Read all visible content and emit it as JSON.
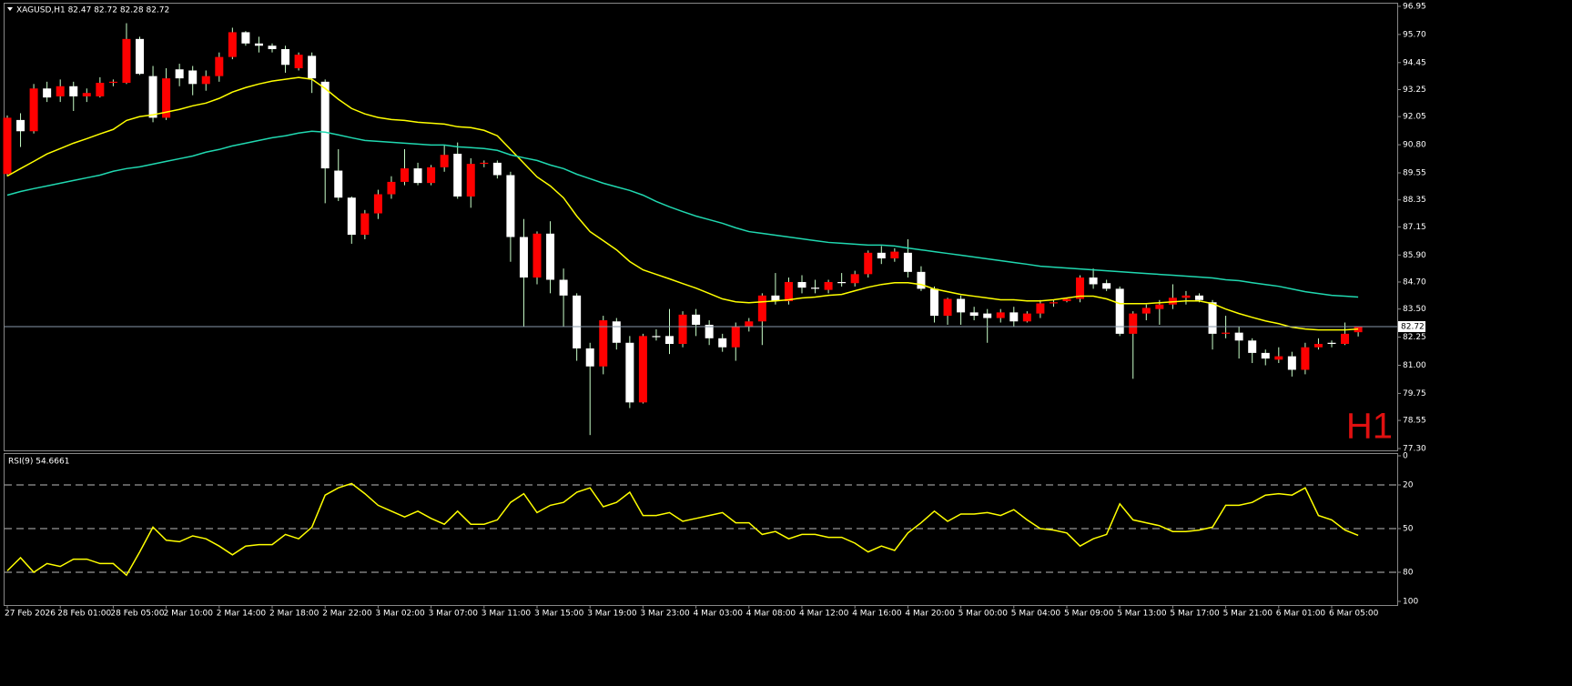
{
  "chart_data": [
    {
      "type": "candlestick",
      "title": "XAGUSD,H1  82.47 82.72 82.28 82.72",
      "annotation": "H1",
      "categories": [
        "27 Feb 2026",
        null,
        null,
        null,
        "28 Feb 01:00",
        null,
        null,
        null,
        "28 Feb 05:00",
        null,
        null,
        null,
        "2 Mar 10:00",
        null,
        null,
        null,
        "2 Mar 14:00",
        null,
        null,
        null,
        "2 Mar 18:00",
        null,
        null,
        null,
        "2 Mar 22:00",
        null,
        null,
        null,
        "3 Mar 02:00",
        null,
        null,
        null,
        "3 Mar 07:00",
        null,
        null,
        null,
        "3 Mar 11:00",
        null,
        null,
        null,
        "3 Mar 15:00",
        null,
        null,
        null,
        "3 Mar 19:00",
        null,
        null,
        null,
        "3 Mar 23:00",
        null,
        null,
        null,
        "4 Mar 03:00",
        null,
        null,
        null,
        "4 Mar 08:00",
        null,
        null,
        null,
        "4 Mar 12:00",
        null,
        null,
        null,
        "4 Mar 16:00",
        null,
        null,
        null,
        "4 Mar 20:00",
        null,
        null,
        null,
        "5 Mar 00:00",
        null,
        null,
        null,
        "5 Mar 04:00",
        null,
        null,
        null,
        "5 Mar 09:00",
        null,
        null,
        null,
        "5 Mar 13:00",
        null,
        null,
        null,
        "5 Mar 17:00",
        null,
        null,
        null,
        "5 Mar 21:00",
        null,
        null,
        null,
        "6 Mar 01:00",
        null,
        null,
        null,
        "6 Mar 05:00",
        null,
        null
      ],
      "open": [
        89.5,
        91.9,
        91.4,
        93.3,
        92.95,
        93.4,
        92.95,
        92.95,
        93.55,
        93.55,
        95.5,
        93.85,
        92.0,
        94.15,
        94.1,
        93.5,
        93.85,
        94.7,
        95.8,
        95.3,
        95.2,
        95.05,
        94.2,
        94.75,
        93.6,
        89.65,
        88.45,
        86.8,
        87.75,
        88.6,
        89.15,
        89.75,
        89.1,
        89.8,
        90.4,
        88.5,
        89.95,
        90.0,
        89.45,
        86.7,
        84.9,
        86.85,
        84.8,
        84.1,
        81.75,
        80.95,
        82.95,
        82.0,
        79.35,
        82.3,
        82.3,
        81.95,
        83.25,
        82.8,
        82.2,
        81.8,
        82.7,
        82.95,
        84.1,
        83.85,
        84.7,
        84.45,
        84.35,
        84.7,
        84.65,
        85.05,
        86.0,
        85.75,
        86.0,
        85.15,
        84.4,
        83.2,
        83.95,
        83.35,
        83.3,
        83.1,
        83.35,
        82.95,
        83.3,
        83.75,
        83.85,
        83.95,
        84.9,
        84.65,
        84.4,
        82.4,
        83.3,
        83.5,
        83.7,
        84.0,
        84.1,
        83.8,
        82.4,
        82.45,
        82.1,
        81.55,
        81.25,
        81.4,
        80.8,
        81.8,
        82.0,
        81.95,
        82.47
      ],
      "high": [
        92.1,
        92.2,
        93.5,
        93.6,
        93.7,
        93.6,
        93.3,
        93.8,
        93.7,
        96.2,
        95.6,
        94.3,
        94.2,
        94.4,
        94.3,
        94.1,
        94.9,
        96.0,
        95.85,
        95.6,
        95.3,
        95.2,
        94.9,
        94.9,
        93.7,
        90.6,
        88.5,
        87.9,
        88.8,
        89.4,
        90.6,
        90.0,
        89.9,
        90.8,
        90.9,
        90.2,
        90.1,
        90.1,
        89.6,
        87.5,
        86.95,
        87.4,
        85.3,
        84.2,
        82.0,
        83.2,
        83.1,
        82.3,
        82.4,
        82.6,
        83.5,
        83.4,
        83.5,
        83.0,
        82.4,
        82.9,
        83.1,
        84.2,
        85.1,
        84.9,
        85.0,
        84.8,
        84.8,
        85.1,
        85.2,
        86.1,
        86.3,
        86.2,
        86.6,
        85.4,
        84.5,
        84.0,
        84.1,
        83.6,
        83.5,
        83.5,
        83.6,
        83.4,
        83.9,
        83.9,
        84.0,
        85.0,
        85.3,
        84.8,
        84.5,
        83.4,
        83.7,
        83.9,
        84.6,
        84.3,
        84.2,
        83.9,
        83.2,
        82.7,
        82.2,
        81.7,
        81.8,
        81.6,
        82.0,
        82.2,
        82.1,
        82.9,
        82.72
      ],
      "low": [
        89.4,
        90.7,
        91.3,
        92.7,
        92.7,
        92.3,
        92.7,
        92.9,
        93.4,
        93.5,
        93.9,
        91.8,
        91.9,
        93.4,
        93.0,
        93.2,
        93.6,
        94.6,
        95.2,
        94.9,
        94.9,
        94.0,
        94.1,
        93.1,
        88.2,
        88.3,
        86.4,
        86.6,
        87.5,
        88.4,
        89.0,
        89.0,
        89.0,
        89.6,
        88.4,
        88.0,
        89.8,
        89.3,
        85.6,
        82.7,
        84.6,
        84.2,
        82.7,
        81.2,
        77.9,
        80.6,
        81.7,
        79.1,
        79.3,
        82.1,
        81.5,
        81.8,
        82.3,
        81.9,
        81.6,
        81.2,
        82.5,
        81.9,
        83.7,
        83.7,
        84.2,
        84.2,
        84.2,
        84.5,
        84.5,
        84.9,
        85.5,
        85.6,
        84.9,
        84.3,
        82.9,
        82.8,
        82.8,
        83.0,
        82.0,
        82.9,
        82.7,
        82.9,
        83.1,
        83.6,
        83.8,
        83.8,
        84.4,
        84.3,
        82.3,
        80.4,
        83.0,
        82.8,
        83.5,
        83.7,
        83.8,
        81.7,
        82.2,
        81.3,
        81.1,
        81.0,
        81.1,
        80.5,
        80.6,
        81.7,
        81.8,
        81.9,
        82.28
      ],
      "close": [
        92.0,
        91.4,
        93.3,
        92.9,
        93.4,
        92.95,
        93.1,
        93.55,
        93.6,
        95.5,
        93.95,
        92.0,
        93.75,
        93.75,
        93.5,
        93.85,
        94.7,
        95.8,
        95.3,
        95.2,
        95.05,
        94.35,
        94.8,
        93.75,
        89.75,
        88.45,
        86.8,
        87.75,
        88.6,
        89.15,
        89.75,
        89.1,
        89.8,
        90.35,
        88.5,
        89.95,
        90.0,
        89.45,
        86.7,
        84.9,
        86.85,
        84.8,
        84.1,
        81.75,
        80.95,
        83.0,
        82.0,
        79.35,
        82.3,
        82.25,
        81.95,
        83.25,
        82.8,
        82.2,
        81.8,
        82.7,
        82.95,
        84.1,
        83.85,
        84.7,
        84.45,
        84.4,
        84.7,
        84.65,
        85.05,
        86.0,
        85.75,
        86.05,
        85.15,
        84.4,
        83.2,
        83.95,
        83.35,
        83.2,
        83.1,
        83.35,
        82.95,
        83.3,
        83.75,
        83.8,
        83.95,
        84.9,
        84.6,
        84.4,
        82.4,
        83.3,
        83.55,
        83.7,
        84.0,
        84.1,
        83.9,
        82.4,
        82.45,
        82.1,
        81.55,
        81.3,
        81.4,
        80.8,
        81.8,
        81.95,
        81.95,
        82.4,
        82.72
      ],
      "up_color": "#ff0000",
      "down_color": "#ffffff",
      "wick_color": "#c8ffc8",
      "indicators": [
        {
          "color": "#ffff00",
          "values": [
            89.41,
            89.74,
            90.06,
            90.39,
            90.63,
            90.87,
            91.07,
            91.28,
            91.48,
            91.88,
            92.05,
            92.13,
            92.25,
            92.37,
            92.53,
            92.65,
            92.86,
            93.14,
            93.34,
            93.5,
            93.63,
            93.71,
            93.79,
            93.71,
            93.3,
            92.82,
            92.41,
            92.17,
            92.01,
            91.92,
            91.88,
            91.8,
            91.76,
            91.72,
            91.6,
            91.56,
            91.44,
            91.2,
            90.59,
            89.98,
            89.37,
            88.97,
            88.44,
            87.63,
            86.94,
            86.54,
            86.13,
            85.61,
            85.24,
            85.04,
            84.84,
            84.63,
            84.43,
            84.19,
            83.95,
            83.82,
            83.78,
            83.82,
            83.86,
            83.91,
            83.99,
            84.03,
            84.11,
            84.15,
            84.31,
            84.47,
            84.59,
            84.67,
            84.67,
            84.59,
            84.39,
            84.27,
            84.15,
            84.07,
            83.99,
            83.91,
            83.91,
            83.86,
            83.86,
            83.91,
            83.99,
            84.07,
            84.07,
            83.95,
            83.74,
            83.74,
            83.74,
            83.78,
            83.82,
            83.86,
            83.86,
            83.74,
            83.5,
            83.3,
            83.13,
            82.97,
            82.85,
            82.69,
            82.61,
            82.57,
            82.57,
            82.57,
            82.61
          ]
        },
        {
          "color": "#20d8b0",
          "values": [
            88.56,
            88.72,
            88.85,
            88.97,
            89.09,
            89.21,
            89.33,
            89.45,
            89.62,
            89.74,
            89.82,
            89.94,
            90.06,
            90.18,
            90.3,
            90.47,
            90.59,
            90.75,
            90.87,
            90.99,
            91.11,
            91.2,
            91.32,
            91.4,
            91.36,
            91.24,
            91.11,
            90.99,
            90.95,
            90.91,
            90.87,
            90.83,
            90.79,
            90.79,
            90.71,
            90.67,
            90.63,
            90.55,
            90.35,
            90.22,
            90.1,
            89.9,
            89.74,
            89.49,
            89.29,
            89.09,
            88.93,
            88.77,
            88.56,
            88.28,
            88.04,
            87.83,
            87.63,
            87.47,
            87.31,
            87.11,
            86.94,
            86.86,
            86.78,
            86.7,
            86.62,
            86.54,
            86.46,
            86.42,
            86.38,
            86.34,
            86.34,
            86.3,
            86.21,
            86.13,
            86.05,
            85.97,
            85.89,
            85.81,
            85.73,
            85.65,
            85.57,
            85.49,
            85.4,
            85.36,
            85.32,
            85.28,
            85.24,
            85.2,
            85.16,
            85.12,
            85.08,
            85.04,
            85.0,
            84.96,
            84.92,
            84.88,
            84.8,
            84.76,
            84.67,
            84.59,
            84.51,
            84.39,
            84.27,
            84.19,
            84.11,
            84.07,
            84.03
          ]
        }
      ],
      "last_price": 82.72,
      "ylim": [
        97.07,
        77.22
      ],
      "yticks": [
        96.95,
        {
          "value": 95.7,
          "label": "95.70"
        },
        94.45,
        93.25,
        92.05,
        {
          "value": 90.8,
          "label": "90.80"
        },
        89.55,
        88.35,
        87.15,
        {
          "value": 85.9,
          "label": "85.90"
        },
        {
          "value": 84.7,
          "label": "84.70"
        },
        {
          "value": 83.5,
          "label": "83.50"
        },
        82.25,
        {
          "value": 81,
          "label": "81.00"
        },
        79.75,
        78.55,
        {
          "value": 77.3,
          "label": "77.30"
        }
      ]
    },
    {
      "type": "line",
      "title": "RSI(9) 54.6661",
      "color": "#ffff00",
      "values": [
        79,
        70,
        80,
        74,
        76,
        71,
        71,
        74,
        74,
        82,
        66,
        49,
        58,
        59,
        55,
        57,
        62,
        68,
        62,
        61,
        61,
        54,
        57,
        49,
        27,
        22,
        19,
        26,
        34,
        38,
        42,
        38,
        43,
        47,
        38,
        47,
        47,
        44,
        32,
        26,
        39,
        34,
        32,
        25,
        22,
        35,
        32,
        25,
        41,
        41,
        39,
        45,
        43,
        41,
        39,
        46,
        46,
        54,
        52,
        57,
        54,
        54,
        56,
        56,
        60,
        66,
        62,
        65,
        53,
        46,
        38,
        45,
        40,
        40,
        39,
        41,
        37,
        44,
        50,
        51,
        53,
        62,
        57,
        54,
        33,
        44,
        46,
        48,
        52,
        52,
        51,
        49,
        34,
        34,
        32,
        27,
        26,
        27,
        22,
        41,
        44,
        51,
        54.67
      ],
      "ylim": [
        0,
        100
      ],
      "yticks": [
        100,
        80,
        50,
        20,
        0
      ],
      "grid": true
    }
  ]
}
